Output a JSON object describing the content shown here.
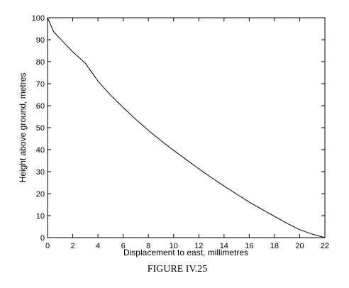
{
  "chart_data": {
    "type": "line",
    "title": "",
    "caption": "FIGURE IV.25",
    "xlabel": "Displacement to east, millimetres",
    "ylabel": "Height above ground, metres",
    "xlim": [
      0,
      22
    ],
    "ylim": [
      0,
      100
    ],
    "xticks": [
      0,
      2,
      4,
      6,
      8,
      10,
      12,
      14,
      16,
      18,
      20,
      22
    ],
    "yticks": [
      0,
      10,
      20,
      30,
      40,
      50,
      60,
      70,
      80,
      90,
      100
    ],
    "grid": false,
    "legend": "none",
    "line_color": "#000000",
    "series": [
      {
        "x": [
          0,
          0.5,
          1,
          2,
          3,
          4,
          5,
          6,
          7,
          8,
          9,
          10,
          11,
          12,
          13,
          14,
          15,
          16,
          17,
          18,
          19,
          20,
          21,
          22
        ],
        "y": [
          100,
          93.5,
          90.5,
          84.5,
          79.3,
          71.2,
          64.8,
          59.2,
          53.8,
          48.8,
          44.1,
          39.7,
          35.5,
          31.3,
          27.3,
          23.5,
          19.8,
          16.2,
          12.9,
          9.7,
          6.5,
          3.6,
          1.6,
          0
        ]
      }
    ]
  }
}
